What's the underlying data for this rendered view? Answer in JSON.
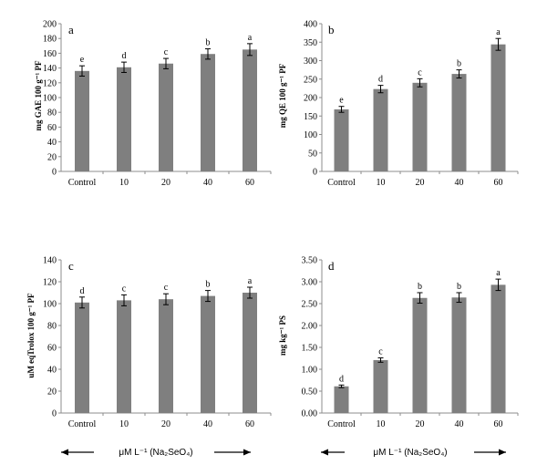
{
  "chart_data": [
    {
      "type": "bar",
      "panel": "a",
      "ylabel": "mg GAE 100 g⁻¹ PF",
      "categories": [
        "Control",
        "10",
        "20",
        "40",
        "60"
      ],
      "values": [
        136,
        141,
        146,
        159,
        165
      ],
      "errors": [
        7,
        7,
        7,
        7,
        8
      ],
      "letters": [
        "e",
        "d",
        "c",
        "b",
        "a"
      ],
      "ylim": [
        0,
        200
      ],
      "yticks": [
        "0",
        "20",
        "40",
        "60",
        "80",
        "100",
        "120",
        "140",
        "160",
        "180",
        "200"
      ],
      "bar_color": "#7f7f7f"
    },
    {
      "type": "bar",
      "panel": "b",
      "ylabel": "mg QE 100 g⁻¹ PF",
      "categories": [
        "Control",
        "10",
        "20",
        "40",
        "60"
      ],
      "values": [
        168,
        223,
        240,
        264,
        344
      ],
      "errors": [
        8,
        10,
        11,
        11,
        16
      ],
      "letters": [
        "e",
        "d",
        "c",
        "b",
        "a"
      ],
      "ylim": [
        0,
        400
      ],
      "yticks": [
        "0",
        "50",
        "100",
        "150",
        "200",
        "250",
        "300",
        "350",
        "400"
      ],
      "bar_color": "#7f7f7f"
    },
    {
      "type": "bar",
      "panel": "c",
      "ylabel": "uM eqTrolox 100 g⁻¹ PF",
      "categories": [
        "Control",
        "10",
        "20",
        "40",
        "60"
      ],
      "values": [
        101,
        103,
        104,
        107,
        110
      ],
      "errors": [
        5,
        5,
        5,
        5,
        5
      ],
      "letters": [
        "d",
        "c",
        "c",
        "b",
        "a"
      ],
      "ylim": [
        0,
        140
      ],
      "yticks": [
        "0",
        "20",
        "40",
        "60",
        "80",
        "100",
        "120",
        "140"
      ],
      "bar_color": "#7f7f7f"
    },
    {
      "type": "bar",
      "panel": "d",
      "ylabel": "mg kg⁻¹ PS",
      "categories": [
        "Control",
        "10",
        "20",
        "40",
        "60"
      ],
      "values": [
        0.61,
        1.21,
        2.63,
        2.64,
        2.93
      ],
      "errors": [
        0.03,
        0.05,
        0.12,
        0.11,
        0.13
      ],
      "letters": [
        "d",
        "c",
        "b",
        "b",
        "a"
      ],
      "ylim": [
        0,
        3.5
      ],
      "yticks": [
        "0.00",
        "0.50",
        "1.00",
        "1.50",
        "2.00",
        "2.50",
        "3.00",
        "3.50"
      ],
      "bar_color": "#7f7f7f"
    }
  ],
  "footer": {
    "left_label": "μM L⁻¹ (Na₂SeO₄)",
    "right_label": "μM L⁻¹ (Na₂SeO₄)"
  }
}
